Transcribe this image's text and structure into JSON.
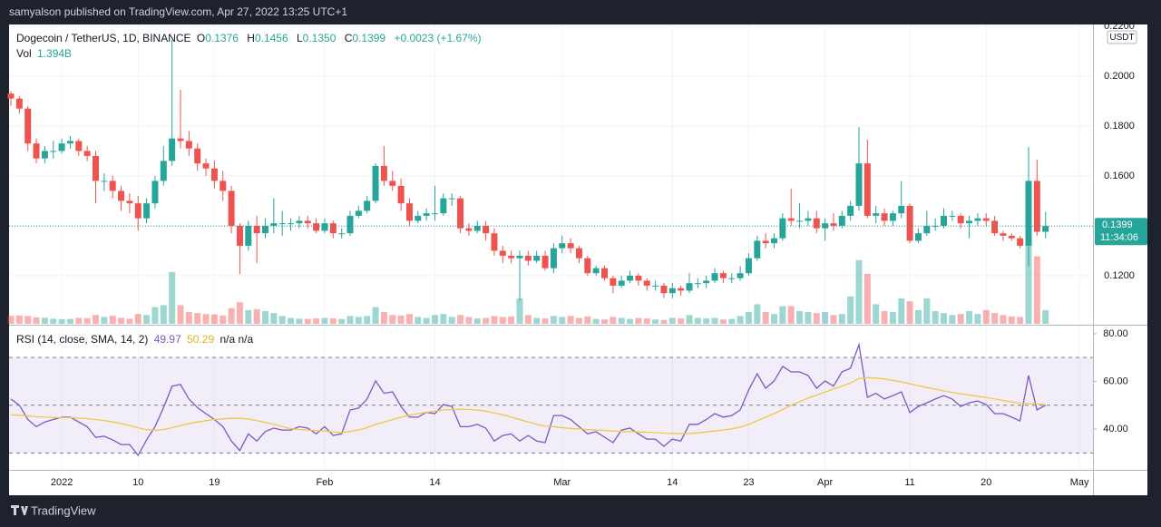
{
  "header": {
    "text": "samyalson published on TradingView.com, Apr 27, 2022 13:25 UTC+1"
  },
  "footer": {
    "logo": "TradingView"
  },
  "chart_data": [
    {
      "type": "candlestick",
      "title": "Dogecoin / TetherUS, 1D, BINANCE",
      "legend_prefixes": [
        "O",
        "H",
        "L",
        "C"
      ],
      "legend_values": [
        "0.1376",
        "0.1456",
        "0.1350",
        "0.1399"
      ],
      "change_label": "+0.0023 (+1.67%)",
      "up_color": "#26a69a",
      "down_color": "#ef5350",
      "currency": "USDT",
      "countdown": "11:34:06",
      "categories": [
        null,
        null,
        null,
        null,
        null,
        null,
        "2022",
        null,
        null,
        null,
        null,
        null,
        null,
        null,
        null,
        "10",
        null,
        null,
        null,
        null,
        null,
        null,
        null,
        null,
        "19",
        null,
        null,
        null,
        null,
        null,
        null,
        null,
        null,
        null,
        null,
        null,
        null,
        "Feb",
        null,
        null,
        null,
        null,
        null,
        null,
        null,
        null,
        null,
        null,
        null,
        null,
        "14",
        null,
        null,
        null,
        null,
        null,
        null,
        null,
        null,
        null,
        null,
        null,
        null,
        null,
        null,
        "Mar",
        null,
        null,
        null,
        null,
        null,
        null,
        null,
        null,
        null,
        null,
        null,
        null,
        "14",
        null,
        null,
        null,
        null,
        null,
        null,
        null,
        null,
        "23",
        null,
        null,
        null,
        null,
        null,
        null,
        null,
        null,
        "Apr",
        null,
        null,
        null,
        null,
        null,
        null,
        null,
        null,
        null,
        "11",
        null,
        null,
        null,
        null,
        null,
        null,
        null,
        null,
        "20",
        null,
        null,
        null,
        null,
        null,
        null,
        null,
        null,
        null,
        null,
        "May"
      ],
      "series": [
        {
          "open": [
            0.193,
            0.191,
            0.187,
            0.173,
            0.167,
            0.17,
            0.17,
            0.173,
            0.174,
            0.17,
            0.168,
            0.158,
            0.158,
            0.154,
            0.15,
            0.149,
            0.143,
            0.149,
            0.158,
            0.166,
            0.175,
            0.174,
            0.171,
            0.165,
            0.163,
            0.158,
            0.154,
            0.14,
            0.132,
            0.14,
            0.137,
            0.14,
            0.141,
            0.141,
            0.141,
            0.142,
            0.141,
            0.138,
            0.141,
            0.137,
            0.137,
            0.144,
            0.146,
            0.15,
            0.164,
            0.158,
            0.156,
            0.149,
            0.142,
            0.144,
            0.145,
            0.145,
            0.151,
            0.151,
            0.139,
            0.138,
            0.14,
            0.137,
            0.13,
            0.128,
            0.127,
            0.128,
            0.126,
            0.128,
            0.123,
            0.131,
            0.133,
            0.131,
            0.127,
            0.121,
            0.123,
            0.119,
            0.116,
            0.118,
            0.12,
            0.118,
            0.116,
            0.116,
            0.113,
            0.115,
            0.114,
            0.117,
            0.117,
            0.118,
            0.121,
            0.119,
            0.119,
            0.121,
            0.127,
            0.134,
            0.133,
            0.135,
            0.143,
            0.142,
            0.142,
            0.143,
            0.139,
            0.141,
            0.14,
            0.144,
            0.148,
            0.165,
            0.144,
            0.145,
            0.142,
            0.145,
            0.148,
            0.134,
            0.137,
            0.14,
            0.14,
            0.144,
            0.144,
            0.141,
            0.142,
            0.143,
            0.142,
            0.137,
            0.136,
            0.135,
            0.132,
            0.158,
            0.1376,
            null,
            null,
            null,
            null
          ],
          "high": [
            0.194,
            0.192,
            0.188,
            0.175,
            0.172,
            0.174,
            0.175,
            0.176,
            0.175,
            0.172,
            0.17,
            0.161,
            0.16,
            0.156,
            0.153,
            0.152,
            0.151,
            0.16,
            0.172,
            0.2145,
            0.1945,
            0.178,
            0.173,
            0.167,
            0.166,
            0.162,
            0.156,
            0.141,
            0.142,
            0.144,
            0.143,
            0.151,
            0.146,
            0.143,
            0.144,
            0.144,
            0.143,
            0.143,
            0.142,
            0.139,
            0.146,
            0.148,
            0.152,
            0.165,
            0.172,
            0.162,
            0.159,
            0.151,
            0.146,
            0.147,
            0.156,
            0.153,
            0.153,
            0.152,
            0.141,
            0.142,
            0.142,
            0.139,
            0.132,
            0.13,
            0.13,
            0.13,
            0.13,
            0.13,
            0.133,
            0.136,
            0.135,
            0.132,
            0.128,
            0.124,
            0.124,
            0.12,
            0.12,
            0.122,
            0.121,
            0.119,
            0.118,
            0.117,
            0.117,
            0.116,
            0.121,
            0.119,
            0.12,
            0.123,
            0.122,
            0.121,
            0.124,
            0.129,
            0.136,
            0.137,
            0.137,
            0.145,
            0.155,
            0.149,
            0.146,
            0.146,
            0.143,
            0.145,
            0.146,
            0.15,
            0.1795,
            0.1745,
            0.148,
            0.147,
            0.146,
            0.158,
            0.149,
            0.139,
            0.146,
            0.143,
            0.147,
            0.146,
            0.145,
            0.144,
            0.145,
            0.145,
            0.144,
            0.138,
            0.137,
            0.136,
            0.1715,
            0.1665,
            0.1456,
            null,
            null,
            null,
            null
          ],
          "low": [
            0.188,
            0.185,
            0.17,
            0.165,
            0.165,
            0.167,
            0.169,
            0.171,
            0.168,
            0.166,
            0.149,
            0.154,
            0.151,
            0.146,
            0.145,
            0.138,
            0.141,
            0.147,
            0.156,
            0.164,
            0.171,
            0.168,
            0.162,
            0.16,
            0.155,
            0.15,
            0.137,
            0.1207,
            0.13,
            0.125,
            0.135,
            0.137,
            0.136,
            0.138,
            0.139,
            0.139,
            0.137,
            0.137,
            0.135,
            0.135,
            0.136,
            0.143,
            0.145,
            0.149,
            0.156,
            0.154,
            0.146,
            0.14,
            0.141,
            0.142,
            0.142,
            0.144,
            0.148,
            0.137,
            0.136,
            0.137,
            0.134,
            0.128,
            0.125,
            0.125,
            0.11,
            0.124,
            0.125,
            0.122,
            0.121,
            0.129,
            0.129,
            0.125,
            0.12,
            0.12,
            0.118,
            0.113,
            0.115,
            0.117,
            0.116,
            0.114,
            0.114,
            0.111,
            0.111,
            0.112,
            0.113,
            0.115,
            0.115,
            0.117,
            0.117,
            0.117,
            0.118,
            0.12,
            0.126,
            0.131,
            0.131,
            0.134,
            0.14,
            0.139,
            0.14,
            0.137,
            0.134,
            0.138,
            0.139,
            0.142,
            0.146,
            0.143,
            0.141,
            0.14,
            0.14,
            0.143,
            0.133,
            0.133,
            0.136,
            0.138,
            0.139,
            0.142,
            0.139,
            0.135,
            0.14,
            0.14,
            0.136,
            0.134,
            0.134,
            0.131,
            0.124,
            0.136,
            0.135,
            null,
            null,
            null,
            null
          ],
          "close": [
            0.191,
            0.187,
            0.173,
            0.167,
            0.17,
            0.17,
            0.173,
            0.174,
            0.17,
            0.168,
            0.158,
            0.158,
            0.154,
            0.15,
            0.149,
            0.143,
            0.149,
            0.158,
            0.166,
            0.175,
            0.174,
            0.171,
            0.165,
            0.163,
            0.158,
            0.154,
            0.14,
            0.132,
            0.14,
            0.137,
            0.14,
            0.141,
            0.141,
            0.141,
            0.142,
            0.141,
            0.138,
            0.141,
            0.137,
            0.137,
            0.144,
            0.146,
            0.15,
            0.164,
            0.158,
            0.156,
            0.149,
            0.142,
            0.144,
            0.145,
            0.145,
            0.151,
            0.151,
            0.139,
            0.138,
            0.14,
            0.137,
            0.13,
            0.128,
            0.127,
            0.128,
            0.126,
            0.128,
            0.123,
            0.131,
            0.133,
            0.131,
            0.127,
            0.121,
            0.123,
            0.119,
            0.116,
            0.118,
            0.12,
            0.118,
            0.116,
            0.116,
            0.113,
            0.115,
            0.114,
            0.117,
            0.117,
            0.118,
            0.121,
            0.119,
            0.119,
            0.121,
            0.127,
            0.134,
            0.133,
            0.135,
            0.143,
            0.142,
            0.142,
            0.143,
            0.139,
            0.141,
            0.14,
            0.144,
            0.148,
            0.165,
            0.144,
            0.145,
            0.142,
            0.145,
            0.148,
            0.134,
            0.137,
            0.14,
            0.14,
            0.144,
            0.144,
            0.141,
            0.142,
            0.143,
            0.142,
            0.137,
            0.136,
            0.135,
            0.132,
            0.158,
            0.1376,
            0.1399,
            null,
            null,
            null,
            null
          ]
        }
      ],
      "volume": {
        "name": "Vol",
        "last_label": "1.394B",
        "values": [
          0.82,
          0.86,
          0.8,
          0.66,
          0.62,
          0.52,
          0.48,
          0.5,
          0.6,
          0.58,
          0.9,
          0.7,
          0.82,
          0.62,
          0.52,
          1.0,
          0.9,
          1.7,
          1.9,
          5.3,
          1.9,
          1.2,
          1.1,
          1.0,
          0.96,
          0.85,
          1.6,
          2.2,
          1.4,
          1.5,
          1.3,
          1.1,
          0.8,
          0.6,
          0.52,
          0.5,
          0.55,
          0.6,
          0.55,
          0.5,
          0.8,
          0.7,
          0.8,
          1.7,
          1.2,
          0.9,
          0.85,
          1.0,
          0.7,
          0.6,
          0.9,
          1.0,
          0.7,
          0.9,
          0.7,
          0.55,
          0.6,
          0.8,
          0.7,
          0.75,
          2.6,
          0.9,
          0.6,
          0.55,
          0.8,
          0.7,
          0.8,
          0.6,
          0.75,
          0.5,
          0.45,
          0.7,
          0.6,
          0.5,
          0.6,
          0.55,
          0.45,
          0.4,
          0.6,
          0.55,
          0.9,
          0.6,
          0.55,
          0.6,
          0.45,
          0.5,
          0.8,
          1.2,
          2.0,
          1.2,
          1.0,
          1.8,
          1.8,
          1.3,
          1.2,
          1.1,
          1.2,
          0.9,
          1.0,
          2.8,
          6.5,
          5.1,
          2.0,
          1.3,
          1.2,
          2.6,
          2.3,
          1.4,
          2.6,
          1.3,
          1.1,
          0.9,
          1.0,
          1.3,
          1.0,
          1.4,
          1.1,
          0.9,
          0.75,
          0.7,
          8.0,
          6.9,
          1.394,
          null,
          null,
          null,
          null
        ]
      },
      "ylim": [
        0.1007,
        0.2207
      ],
      "yticks": [
        {
          "value": 0.22,
          "label": "0.2200"
        },
        {
          "value": 0.2,
          "label": "0.2000"
        },
        {
          "value": 0.18,
          "label": "0.1800"
        },
        {
          "value": 0.16,
          "label": "0.1600"
        },
        {
          "value": 0.14,
          "label": "0.1400"
        },
        {
          "value": 0.12,
          "label": "0.1200"
        }
      ],
      "grid": true
    },
    {
      "type": "line",
      "title": "RSI (14, close, SMA, 14, 2)",
      "extra_label": "n/a n/a",
      "series": [
        {
          "color": "#7e57c2",
          "values": [
            52.6,
            50,
            44,
            41,
            43,
            44,
            45,
            45,
            43,
            41,
            36.5,
            37,
            35.5,
            33.5,
            33.5,
            29,
            35.5,
            41,
            49,
            58,
            58.7,
            52.6,
            49,
            46.5,
            44,
            41,
            35,
            31,
            38,
            35,
            39,
            40.4,
            39.6,
            39.6,
            41,
            40.4,
            38,
            41,
            37.3,
            38,
            48,
            48.8,
            52.6,
            60.2,
            55,
            55.6,
            49.5,
            45,
            45,
            47,
            46.5,
            50.3,
            49.5,
            41,
            41,
            42,
            40.4,
            35,
            37.3,
            38,
            35,
            37.3,
            35,
            34.3,
            45.7,
            45.7,
            44,
            41,
            38,
            38.9,
            36.6,
            34.3,
            39.6,
            40.4,
            38,
            35.8,
            35.8,
            32.8,
            35.8,
            35,
            42,
            42,
            44,
            46.5,
            45,
            45.7,
            48,
            56.4,
            63.2,
            57.1,
            60.2,
            66.3,
            64,
            64,
            62.5,
            57.1,
            60.2,
            58,
            64,
            65.5,
            75.4,
            53.3,
            55,
            52.6,
            54,
            55.6,
            46.9,
            49.5,
            51,
            52.6,
            54,
            52.6,
            49.5,
            51,
            51.8,
            50.3,
            46.5,
            46.5,
            45,
            43.4,
            62.5,
            48,
            49.97,
            null,
            null,
            null,
            null
          ]
        },
        {
          "color": "#f2c744",
          "values": [
            46,
            45.8,
            45.5,
            45.2,
            45,
            44.8,
            44.8,
            44.8,
            44.6,
            44.4,
            44,
            43.6,
            43,
            42.3,
            41.5,
            40.5,
            39.8,
            39.5,
            39.8,
            40.6,
            41.5,
            42.3,
            43,
            43.5,
            44,
            44.3,
            44.5,
            44.5,
            44.2,
            43.6,
            42.8,
            42,
            41,
            40.2,
            39.8,
            39.6,
            39.4,
            39.2,
            38.8,
            38.5,
            39,
            39.6,
            40.6,
            42,
            43,
            44,
            45,
            45.8,
            46.5,
            47,
            47.5,
            48,
            48.2,
            48.3,
            48.2,
            48,
            47.5,
            46.8,
            46,
            45,
            44,
            43,
            42,
            41.2,
            41,
            40.6,
            40.3,
            40,
            39.8,
            39.6,
            39.4,
            39.2,
            39,
            38.9,
            38.8,
            38.7,
            38.5,
            38.3,
            38.2,
            38.1,
            38.2,
            38.4,
            38.8,
            39.2,
            39.6,
            40.1,
            40.8,
            42,
            43.5,
            45,
            46.5,
            48.2,
            50,
            51.5,
            53,
            54.3,
            55.5,
            56.8,
            58,
            59.3,
            61.2,
            61.6,
            61.4,
            61,
            60.4,
            59.8,
            59,
            58.2,
            57.4,
            56.7,
            56,
            55.4,
            54.8,
            54.3,
            53.8,
            53.2,
            52.6,
            52,
            51.4,
            50.9,
            50.7,
            50.5,
            50.29,
            null,
            null,
            null,
            null
          ]
        }
      ],
      "ylim": [
        22.9,
        83
      ],
      "yticks": [
        {
          "value": 80,
          "label": "80.00"
        },
        {
          "value": 60,
          "label": "60.00"
        },
        {
          "value": 40,
          "label": "40.00"
        }
      ],
      "bands": [
        30,
        70
      ],
      "midline": 50
    }
  ]
}
